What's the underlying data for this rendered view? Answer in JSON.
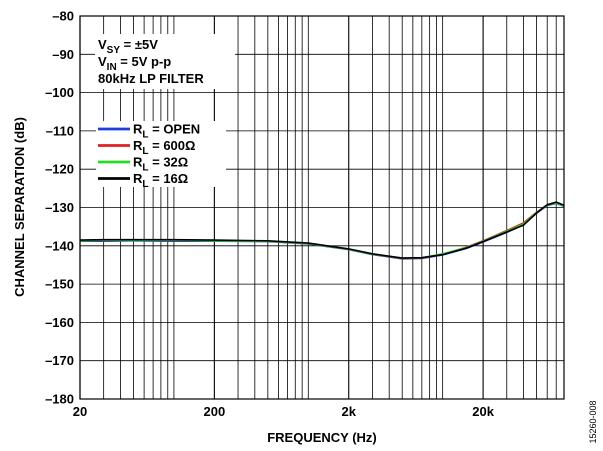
{
  "chart_data": {
    "type": "line",
    "title": "",
    "xlabel": "FREQUENCY (Hz)",
    "ylabel": "CHANNEL SEPARATION (dB)",
    "x_scale": "log",
    "xlim": [
      20,
      80000
    ],
    "ylim": [
      -180,
      -80
    ],
    "x_tick_values": [
      20,
      200,
      2000,
      20000
    ],
    "x_tick_labels": [
      "20",
      "200",
      "2k",
      "20k"
    ],
    "y_ticks": [
      -80,
      -90,
      -100,
      -110,
      -120,
      -130,
      -140,
      -150,
      -160,
      -170,
      -180
    ],
    "y_tick_labels": [
      "–80",
      "–90",
      "–100",
      "–110",
      "–120",
      "–130",
      "–140",
      "–150",
      "–160",
      "–170",
      "–180"
    ],
    "grid": true,
    "legend_position": "top-left",
    "conditions": [
      {
        "main": "V",
        "sub": "SY",
        "rest": " = ±5V"
      },
      {
        "main": "V",
        "sub": "IN",
        "rest": " = 5V p-p"
      },
      {
        "main": "80kHz LP FILTER",
        "sub": "",
        "rest": ""
      }
    ],
    "series": [
      {
        "name": "R_L = OPEN",
        "label_main": "R",
        "label_sub": "L",
        "label_rest": " = OPEN",
        "color": "#1f3fdc",
        "x": [
          20,
          30,
          50,
          100,
          200,
          500,
          1000,
          2000,
          3000,
          5000,
          7000,
          10000,
          15000,
          20000,
          30000,
          40000,
          50000,
          60000,
          70000,
          80000
        ],
        "y": [
          -138.8,
          -138.8,
          -138.7,
          -138.8,
          -138.8,
          -138.9,
          -139.5,
          -141.0,
          -142.3,
          -143.4,
          -143.3,
          -142.4,
          -140.7,
          -139.0,
          -136.5,
          -134.5,
          -131.5,
          -129.5,
          -128.9,
          -129.7
        ]
      },
      {
        "name": "R_L = 600Ω",
        "label_main": "R",
        "label_sub": "L",
        "label_rest": " = 600Ω",
        "color": "#e02020",
        "x": [
          20,
          30,
          50,
          100,
          200,
          500,
          1000,
          2000,
          3000,
          5000,
          7000,
          10000,
          15000,
          20000,
          30000,
          40000,
          50000,
          60000,
          70000,
          80000
        ],
        "y": [
          -138.6,
          -138.6,
          -138.5,
          -138.6,
          -138.6,
          -138.8,
          -139.4,
          -140.9,
          -142.2,
          -143.3,
          -143.2,
          -142.2,
          -140.4,
          -138.7,
          -136.0,
          -134.0,
          -131.2,
          -129.3,
          -128.7,
          -129.5
        ]
      },
      {
        "name": "R_L = 32Ω",
        "label_main": "R",
        "label_sub": "L",
        "label_rest": " = 32Ω",
        "color": "#22dd22",
        "x": [
          20,
          30,
          50,
          100,
          200,
          500,
          1000,
          2000,
          3000,
          5000,
          7000,
          10000,
          15000,
          20000,
          30000,
          40000,
          50000,
          60000,
          70000,
          80000
        ],
        "y": [
          -138.7,
          -138.5,
          -138.6,
          -138.5,
          -138.7,
          -138.8,
          -139.4,
          -140.9,
          -142.2,
          -143.2,
          -143.1,
          -142.1,
          -140.5,
          -138.8,
          -136.2,
          -134.3,
          -131.3,
          -129.4,
          -128.8,
          -129.6
        ]
      },
      {
        "name": "R_L = 16Ω",
        "label_main": "R",
        "label_sub": "L",
        "label_rest": " = 16Ω",
        "color": "#000000",
        "x": [
          20,
          30,
          50,
          100,
          200,
          500,
          1000,
          2000,
          3000,
          5000,
          7000,
          10000,
          15000,
          20000,
          30000,
          40000,
          50000,
          60000,
          70000,
          80000
        ],
        "y": [
          -138.5,
          -138.4,
          -138.4,
          -138.4,
          -138.5,
          -138.7,
          -139.3,
          -140.8,
          -142.1,
          -143.2,
          -143.1,
          -142.3,
          -140.6,
          -138.9,
          -136.4,
          -134.6,
          -131.4,
          -129.3,
          -128.6,
          -129.4
        ]
      }
    ],
    "figure_id": "15260-008"
  }
}
